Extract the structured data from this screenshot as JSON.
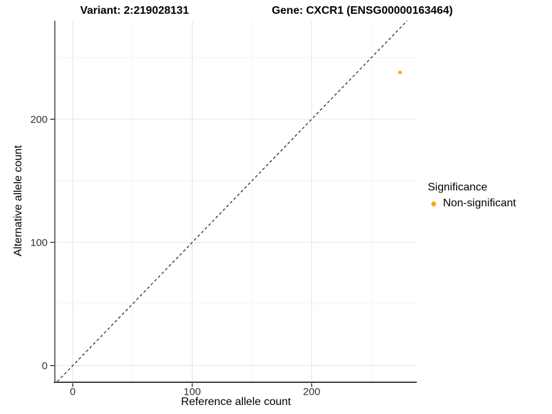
{
  "chart_data": {
    "type": "scatter",
    "title_left": "Variant: 2:219028131",
    "title_right": "Gene: CXCR1 (ENSG00000163464)",
    "xlabel": "Reference allele count",
    "ylabel": "Alternative allele count",
    "xlim": [
      -15,
      288
    ],
    "ylim": [
      -13,
      280
    ],
    "x_ticks": [
      0,
      100,
      200
    ],
    "y_ticks": [
      0,
      100,
      200
    ],
    "minor_step": 50,
    "grid": true,
    "reference_line": {
      "type": "identity",
      "style": "dashed",
      "color": "#1a1a1a"
    },
    "series": [
      {
        "name": "Non-significant",
        "color": "#FFA500",
        "points": [
          {
            "x": 274,
            "y": 238
          }
        ]
      }
    ],
    "legend": {
      "title": "Significance",
      "position": "right",
      "entries": [
        {
          "label": "Non-significant",
          "color": "#FFA500"
        }
      ]
    }
  },
  "colors": {
    "background": "#ffffff",
    "grid_major": "#E3E3E3",
    "grid_minor": "#F2F2F2",
    "axis_line": "#404040",
    "tick": "#333333",
    "non_significant": "#FFA500"
  }
}
